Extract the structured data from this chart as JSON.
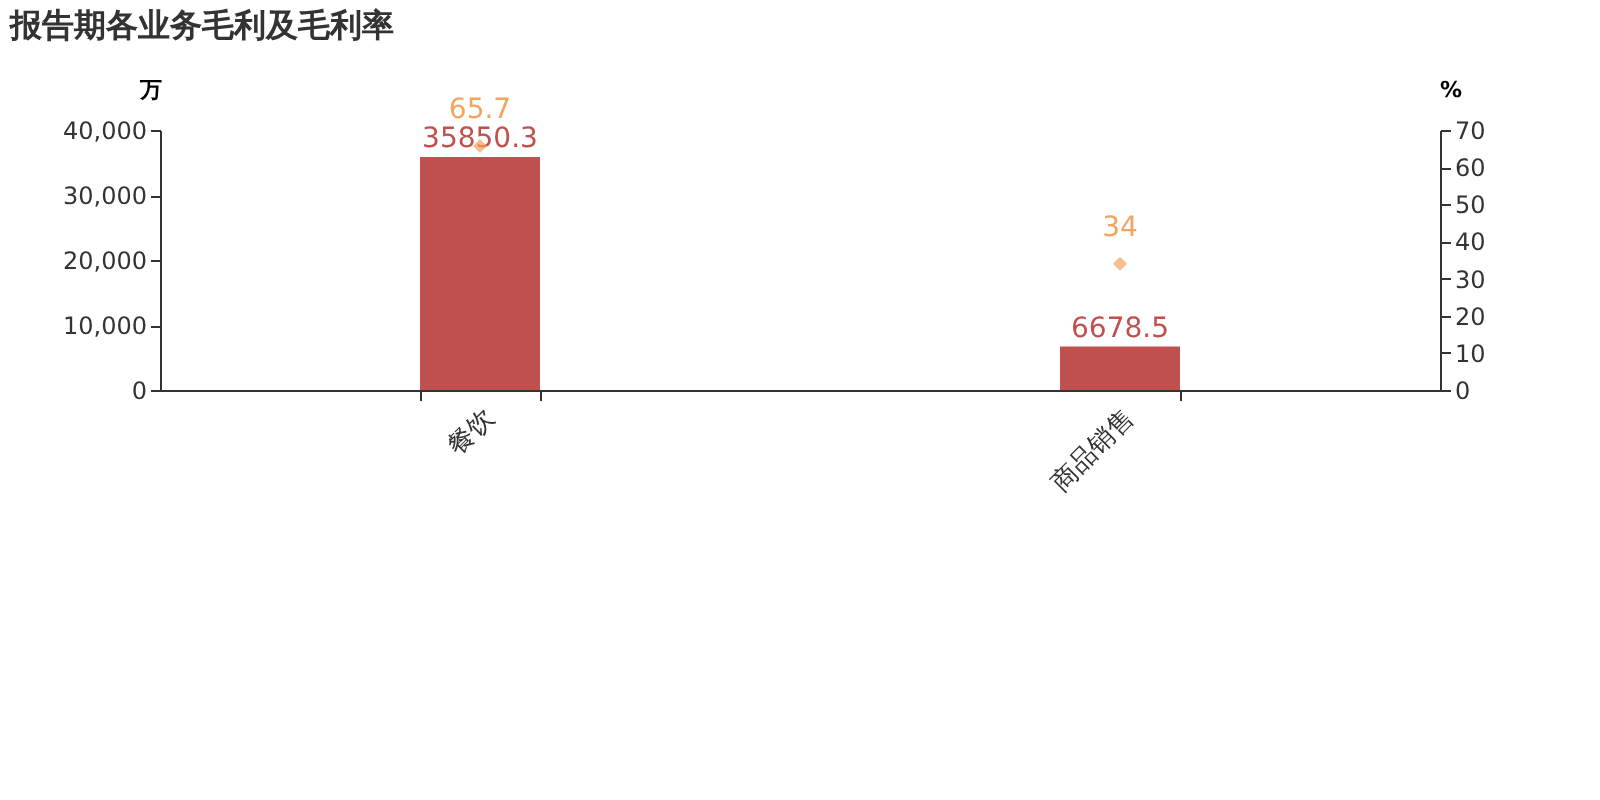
{
  "chart_data": {
    "type": "bar",
    "title": "报告期各业务毛利及毛利率",
    "categories": [
      "餐饮",
      "商品销售"
    ],
    "series": [
      {
        "color": "#c0504d",
        "values": [
          35850.3,
          6678.5
        ]
      },
      {
        "type": "scatter",
        "axis": "y2",
        "color": "#f4a460",
        "values": [
          65.7,
          34
        ]
      }
    ],
    "ylabel": "万",
    "y2label": "%",
    "ylim": [
      0,
      40000
    ],
    "yticks": [
      0,
      {
        "value": 10000,
        "label": "10,000"
      },
      {
        "value": 20000,
        "label": "20,000"
      },
      {
        "value": 30000,
        "label": "30,000"
      },
      {
        "value": 40000,
        "label": "40,000"
      }
    ],
    "y2lim": [
      0,
      70
    ],
    "y2ticks": [
      0,
      10,
      20,
      30,
      40,
      50,
      60,
      70
    ],
    "data_labels": true,
    "marker": "diamond",
    "grid": false
  }
}
